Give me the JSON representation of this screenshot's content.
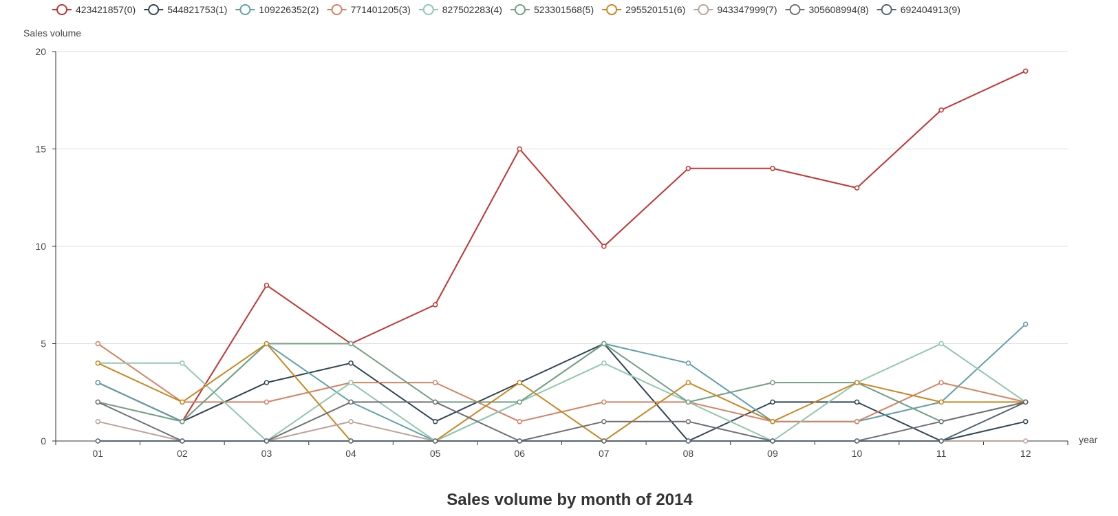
{
  "chart_data": {
    "type": "line",
    "title": "Sales volume by month of 2014",
    "xlabel": "year",
    "ylabel": "Sales volume",
    "ylim": [
      0,
      20
    ],
    "yticks": [
      0,
      5,
      10,
      15,
      20
    ],
    "grid": true,
    "legend_position": "top",
    "categories": [
      "01",
      "02",
      "03",
      "04",
      "05",
      "06",
      "07",
      "08",
      "09",
      "10",
      "11",
      "12"
    ],
    "series": [
      {
        "name": "423421857(0)",
        "color": "#c23531",
        "values": [
          3,
          1,
          8,
          5,
          7,
          15,
          10,
          14,
          14,
          13,
          17,
          19
        ]
      },
      {
        "name": "544821753(1)",
        "color": "#2f4554",
        "values": [
          3,
          1,
          3,
          4,
          1,
          3,
          5,
          0,
          2,
          2,
          0,
          1
        ]
      },
      {
        "name": "109226352(2)",
        "color": "#61a0a8",
        "values": [
          3,
          1,
          5,
          2,
          0,
          2,
          5,
          4,
          1,
          1,
          2,
          6
        ]
      },
      {
        "name": "771401205(3)",
        "color": "#d48265",
        "values": [
          5,
          2,
          2,
          3,
          3,
          1,
          2,
          2,
          1,
          1,
          3,
          2
        ]
      },
      {
        "name": "827502283(4)",
        "color": "#91c7ae",
        "values": [
          4,
          4,
          0,
          3,
          0,
          2,
          4,
          2,
          0,
          3,
          5,
          2
        ]
      },
      {
        "name": "523301568(5)",
        "color": "#749f83",
        "values": [
          2,
          1,
          5,
          5,
          2,
          2,
          5,
          2,
          3,
          3,
          1,
          2
        ]
      },
      {
        "name": "295520151(6)",
        "color": "#ca8622",
        "values": [
          4,
          2,
          5,
          0,
          0,
          3,
          0,
          3,
          1,
          3,
          2,
          2
        ]
      },
      {
        "name": "943347999(7)",
        "color": "#bda29a",
        "values": [
          1,
          0,
          0,
          1,
          0,
          0,
          0,
          0,
          0,
          0,
          0,
          0
        ]
      },
      {
        "name": "305608994(8)",
        "color": "#6e7074",
        "values": [
          2,
          0,
          0,
          2,
          2,
          0,
          1,
          1,
          0,
          0,
          1,
          2
        ]
      },
      {
        "name": "692404913(9)",
        "color": "#546570",
        "values": [
          0,
          0,
          0,
          0,
          0,
          0,
          0,
          0,
          0,
          0,
          0,
          2
        ]
      }
    ]
  }
}
